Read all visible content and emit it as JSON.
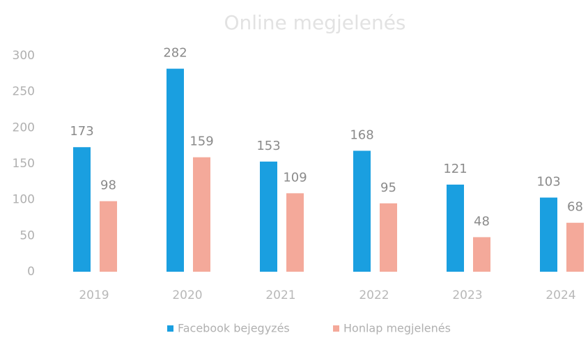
{
  "chart_data": {
    "type": "bar",
    "title": "Online megjelenés",
    "categories": [
      "2019",
      "2020",
      "2021",
      "2022",
      "2023",
      "2024"
    ],
    "series": [
      {
        "name": "Facebook bejegyzés",
        "color": "#1a9fe0",
        "values": [
          173,
          282,
          153,
          168,
          121,
          103
        ]
      },
      {
        "name": "Honlap megjelenés",
        "color": "#f4a99a",
        "values": [
          98,
          159,
          109,
          95,
          48,
          68
        ]
      }
    ],
    "ylim": [
      0,
      300
    ],
    "yticks": [
      0,
      50,
      100,
      150,
      200,
      250,
      300
    ],
    "grid": false,
    "legend": "bottom"
  }
}
